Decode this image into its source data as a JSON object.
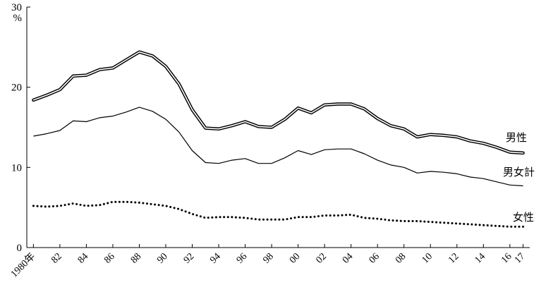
{
  "chart_data": {
    "type": "line",
    "ylim": [
      0,
      30
    ],
    "yticks": [
      0,
      10,
      20,
      30
    ],
    "ytick_labels": [
      "0",
      "10",
      "20",
      "30"
    ],
    "y_unit_label": "%",
    "xlim": [
      1979.5,
      2017.5
    ],
    "xtick_positions": [
      1980,
      1982,
      1984,
      1986,
      1988,
      1990,
      1992,
      1994,
      1996,
      1998,
      2000,
      2002,
      2004,
      2006,
      2008,
      2010,
      2012,
      2014,
      2016,
      2017
    ],
    "xtick_labels": [
      "1980年",
      "82",
      "84",
      "86",
      "88",
      "90",
      "92",
      "94",
      "96",
      "98",
      "00",
      "02",
      "04",
      "06",
      "08",
      "10",
      "12",
      "14",
      "16",
      "17"
    ],
    "x": [
      1980,
      1981,
      1982,
      1983,
      1984,
      1985,
      1986,
      1987,
      1988,
      1989,
      1990,
      1991,
      1992,
      1993,
      1994,
      1995,
      1996,
      1997,
      1998,
      1999,
      2000,
      2001,
      2002,
      2003,
      2004,
      2005,
      2006,
      2007,
      2008,
      2009,
      2010,
      2011,
      2012,
      2013,
      2014,
      2015,
      2016,
      2017
    ],
    "grid": false,
    "legend": "none",
    "series": [
      {
        "name": "男性",
        "style": "double",
        "color": "#000000",
        "values": [
          18.4,
          19.0,
          19.7,
          21.4,
          21.5,
          22.2,
          22.4,
          23.4,
          24.4,
          23.9,
          22.6,
          20.4,
          17.2,
          14.9,
          14.8,
          15.2,
          15.7,
          15.1,
          15.0,
          16.0,
          17.4,
          16.8,
          17.8,
          17.9,
          17.9,
          17.3,
          16.1,
          15.2,
          14.8,
          13.8,
          14.1,
          14.0,
          13.8,
          13.3,
          13.0,
          12.5,
          11.9,
          11.8
        ]
      },
      {
        "name": "男女計",
        "style": "solid",
        "color": "#000000",
        "values": [
          13.9,
          14.2,
          14.6,
          15.8,
          15.7,
          16.2,
          16.4,
          16.9,
          17.5,
          17.0,
          16.0,
          14.4,
          12.1,
          10.6,
          10.5,
          10.9,
          11.1,
          10.5,
          10.5,
          11.2,
          12.1,
          11.6,
          12.2,
          12.3,
          12.3,
          11.7,
          10.9,
          10.3,
          10.0,
          9.3,
          9.5,
          9.4,
          9.2,
          8.8,
          8.6,
          8.2,
          7.8,
          7.7
        ]
      },
      {
        "name": "女性",
        "style": "dotted",
        "color": "#000000",
        "values": [
          5.2,
          5.1,
          5.2,
          5.5,
          5.2,
          5.3,
          5.7,
          5.7,
          5.6,
          5.4,
          5.2,
          4.8,
          4.2,
          3.7,
          3.8,
          3.8,
          3.7,
          3.5,
          3.5,
          3.5,
          3.8,
          3.8,
          4.0,
          4.0,
          4.1,
          3.7,
          3.6,
          3.4,
          3.3,
          3.3,
          3.2,
          3.1,
          3.0,
          2.9,
          2.8,
          2.7,
          2.6,
          2.6
        ]
      }
    ]
  }
}
